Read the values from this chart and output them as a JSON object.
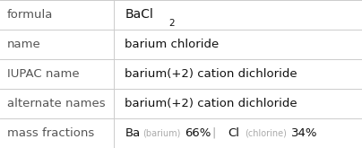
{
  "rows": [
    {
      "label": "formula",
      "value": "formula_special"
    },
    {
      "label": "name",
      "value": "barium chloride"
    },
    {
      "label": "IUPAC name",
      "value": "barium(+2) cation dichloride"
    },
    {
      "label": "alternate names",
      "value": "barium(+2) cation dichloride"
    },
    {
      "label": "mass fractions",
      "value": "mass_fractions_special"
    }
  ],
  "col_split": 0.315,
  "bg_color": "#ffffff",
  "label_color": "#555555",
  "value_color": "#111111",
  "line_color": "#cccccc",
  "label_fontsize": 9.5,
  "value_fontsize": 9.5,
  "mass_symbol_color": "#111111",
  "mass_name_color": "#aaaaaa",
  "mass_pct_color": "#111111",
  "formula_fontsize": 10,
  "formula_sub_fontsize": 7.5
}
